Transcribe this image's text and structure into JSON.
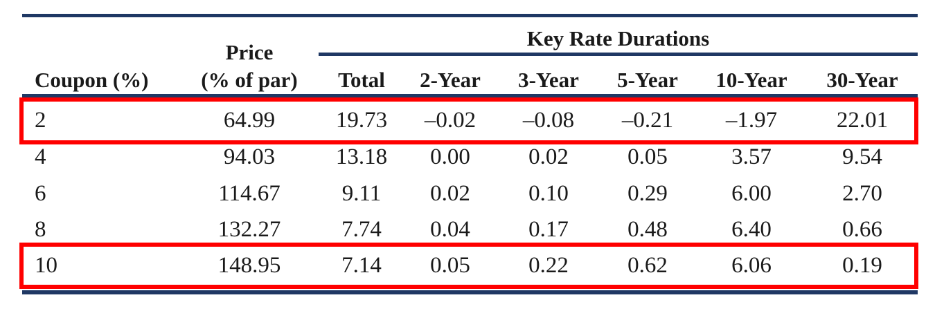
{
  "table": {
    "group_header": "Key Rate Durations",
    "price_header_line1": "Price",
    "headers": [
      "Coupon (%)",
      "(% of par)",
      "Total",
      "2-Year",
      "3-Year",
      "5-Year",
      "10-Year",
      "30-Year"
    ],
    "rows": [
      [
        "2",
        "64.99",
        "19.73",
        "–0.02",
        "–0.08",
        "–0.21",
        "–1.97",
        "22.01"
      ],
      [
        "4",
        "94.03",
        "13.18",
        "0.00",
        "0.02",
        "0.05",
        "3.57",
        "9.54"
      ],
      [
        "6",
        "114.67",
        "9.11",
        "0.02",
        "0.10",
        "0.29",
        "6.00",
        "2.70"
      ],
      [
        "8",
        "132.27",
        "7.74",
        "0.04",
        "0.17",
        "0.48",
        "6.40",
        "0.66"
      ],
      [
        "10",
        "148.95",
        "7.14",
        "0.05",
        "0.22",
        "0.62",
        "6.06",
        "0.19"
      ]
    ],
    "highlighted_rows": [
      0,
      4
    ]
  },
  "colors": {
    "rule": "#1f3864",
    "highlight": "#ff0000",
    "text": "#1a1a1a"
  }
}
